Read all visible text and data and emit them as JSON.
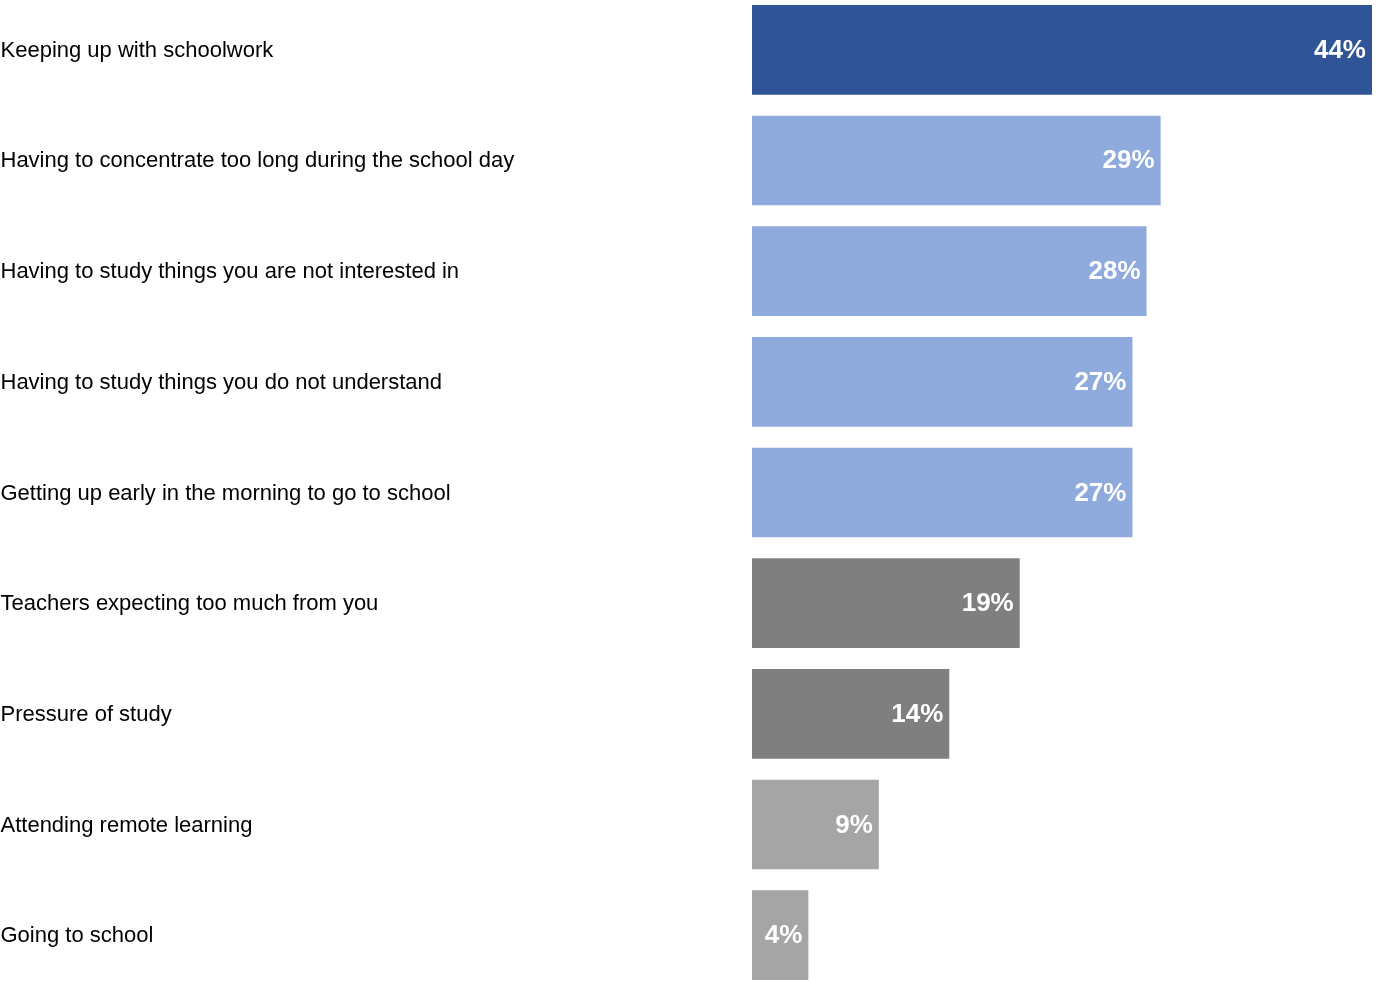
{
  "chart_data": {
    "type": "bar",
    "orientation": "horizontal",
    "categories": [
      "Keeping up with schoolwork",
      "Having to concentrate too long during the school day",
      "Having to study things you are not interested in",
      "Having to study things you do not understand",
      "Getting up early in the morning to go to school",
      "Teachers expecting too much from you",
      "Pressure of study",
      "Attending remote learning",
      "Going to school"
    ],
    "values": [
      44,
      29,
      28,
      27,
      27,
      19,
      14,
      9,
      4
    ],
    "value_labels": [
      "44%",
      "29%",
      "28%",
      "27%",
      "27%",
      "19%",
      "14%",
      "9%",
      "4%"
    ],
    "colors": [
      "#2f5597",
      "#8faadc",
      "#8faadc",
      "#8faadc",
      "#8faadc",
      "#7f7f7f",
      "#7f7f7f",
      "#a5a5a5",
      "#a5a5a5"
    ]
  }
}
